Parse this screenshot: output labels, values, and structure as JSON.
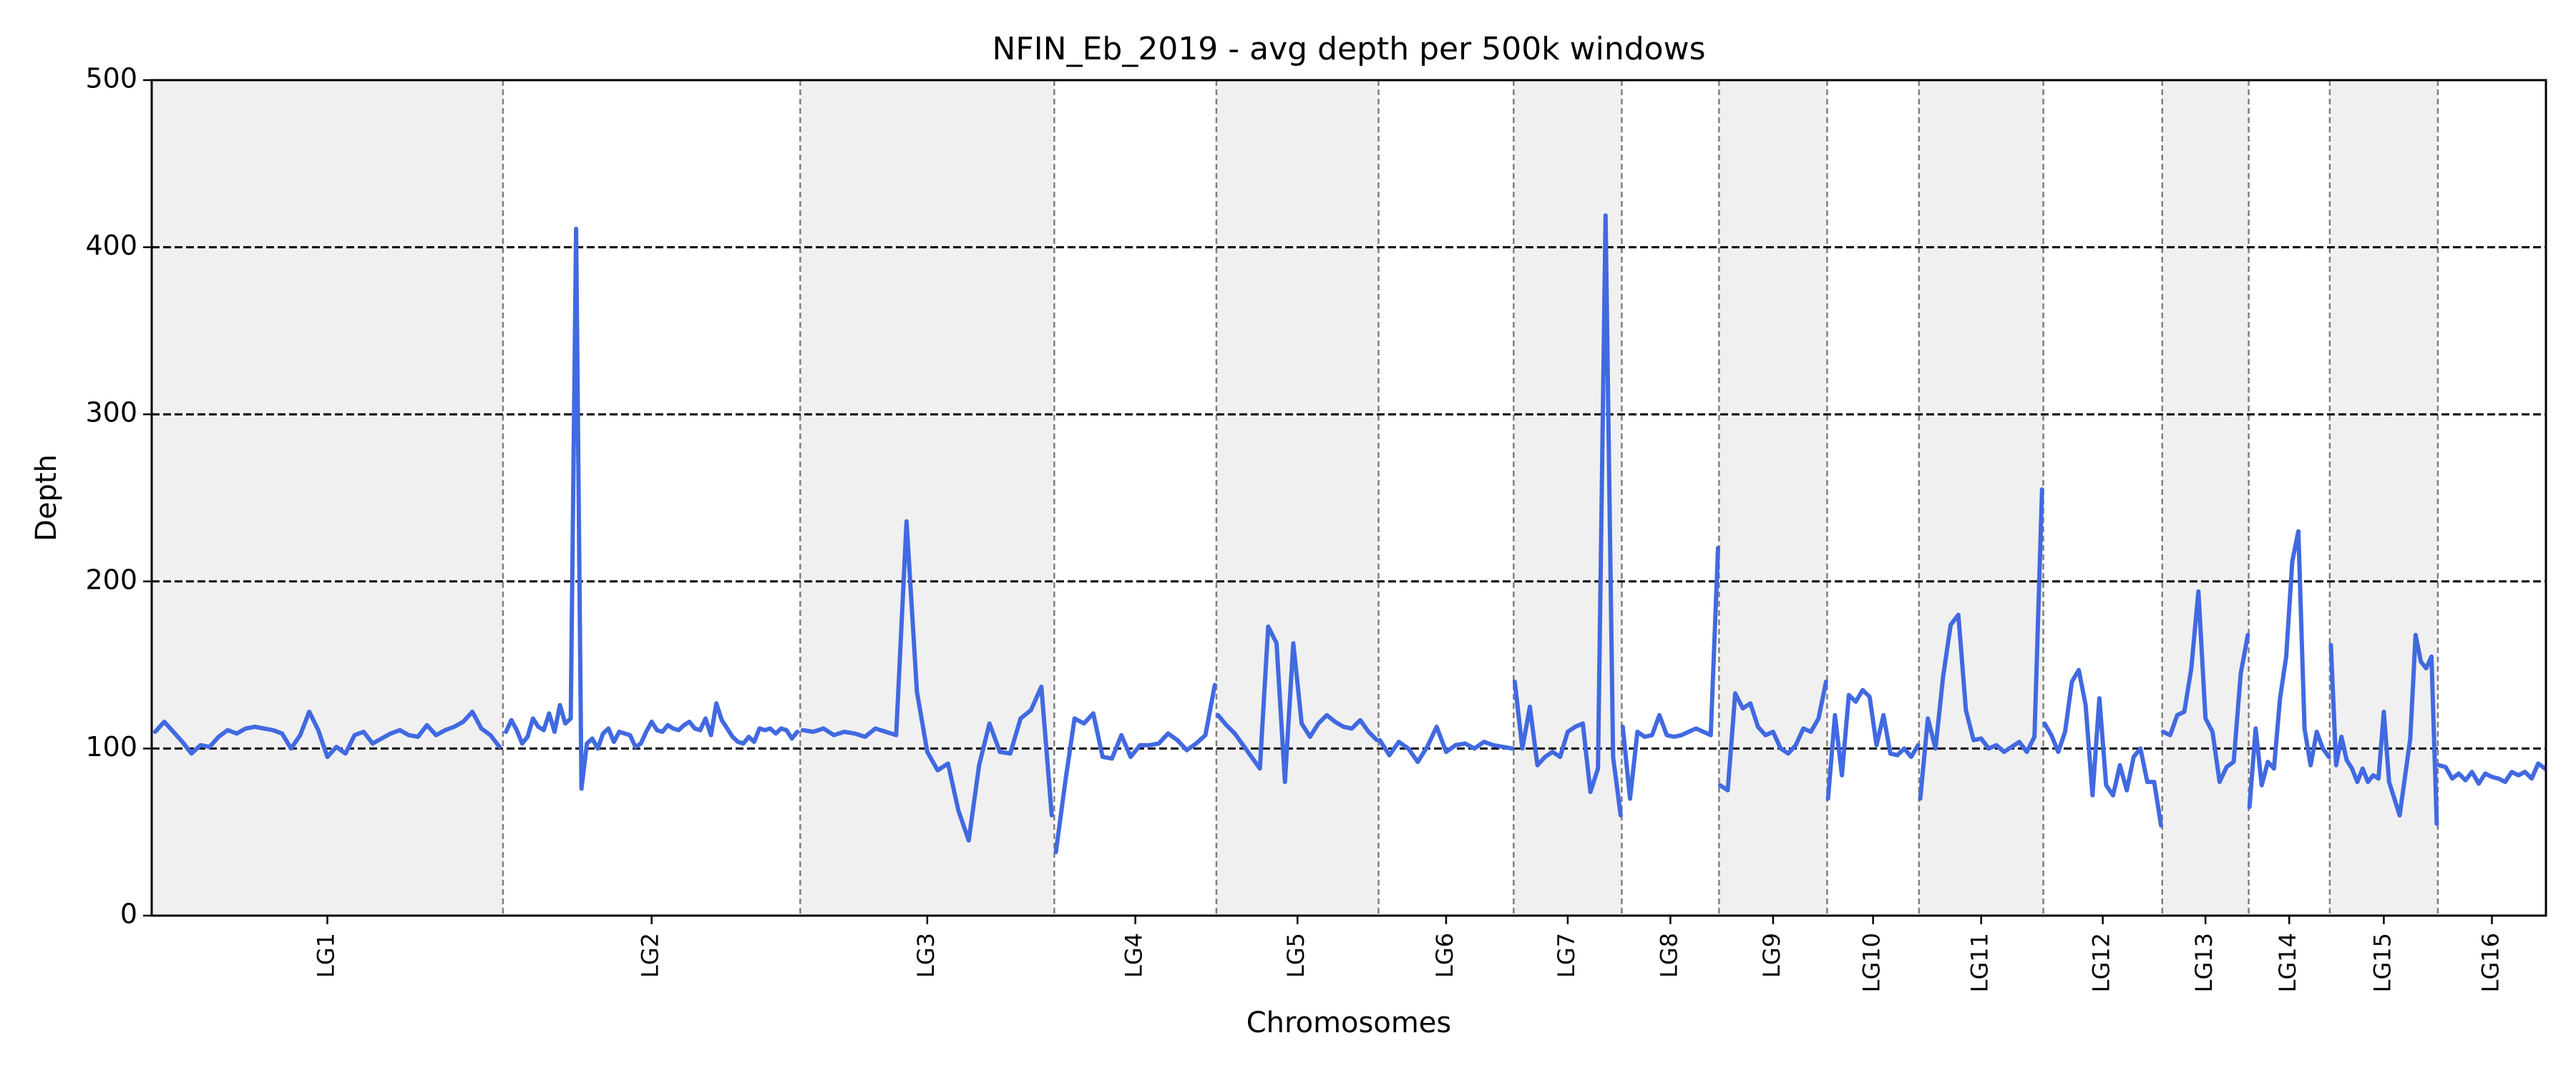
{
  "chart_data": {
    "type": "line",
    "title": "NFIN_Eb_2019 - avg depth per 500k windows",
    "xlabel": "Chromosomes",
    "ylabel": "Depth",
    "ylim": [
      0,
      500
    ],
    "yticks": [
      0,
      100,
      200,
      300,
      400,
      500
    ],
    "reference_lines": [
      100,
      200,
      300,
      400
    ],
    "grid": false,
    "legend": "none",
    "colors": {
      "line": "#4169E1",
      "shade": "#f0f0f0",
      "boundary": "#808080",
      "reference": "#000000"
    },
    "chromosomes": [
      {
        "name": "LG1",
        "width": 65,
        "shaded": true,
        "depth": [
          110,
          116,
          110,
          104,
          97,
          102,
          101,
          107,
          111,
          109,
          112,
          113,
          112,
          111,
          109,
          100,
          108,
          122,
          111,
          95,
          101,
          97,
          108,
          110,
          103,
          106,
          109,
          111,
          108,
          107,
          114,
          108,
          111,
          113,
          116,
          122,
          112,
          108,
          101
        ]
      },
      {
        "name": "LG2",
        "width": 55,
        "shaded": false,
        "depth": [
          110,
          117,
          111,
          103,
          107,
          118,
          113,
          111,
          121,
          110,
          126,
          115,
          118,
          411,
          76,
          103,
          106,
          100,
          109,
          112,
          104,
          110,
          109,
          108,
          101,
          103,
          110,
          116,
          111,
          110,
          114,
          112,
          111,
          114,
          116,
          112,
          111,
          118,
          108,
          127,
          117,
          112,
          107,
          104,
          103,
          107,
          104,
          112,
          111,
          112,
          109,
          112,
          111,
          106,
          110
        ]
      },
      {
        "name": "LG3",
        "width": 47,
        "shaded": true,
        "depth": [
          111,
          110,
          112,
          108,
          110,
          109,
          107,
          112,
          110,
          108,
          236,
          134,
          98,
          87,
          91,
          63,
          45,
          90,
          115,
          98,
          97,
          118,
          123,
          137,
          60
        ]
      },
      {
        "name": "LG4",
        "width": 30,
        "shaded": false,
        "depth": [
          38,
          80,
          118,
          115,
          121,
          95,
          94,
          108,
          95,
          102,
          102,
          103,
          109,
          105,
          99,
          103,
          108,
          138
        ]
      },
      {
        "name": "LG5",
        "width": 30,
        "shaded": true,
        "depth": [
          120,
          114,
          109,
          102,
          95,
          88,
          173,
          163,
          80,
          163,
          115,
          107,
          115,
          120,
          116,
          113,
          112,
          117,
          110,
          105
        ]
      },
      {
        "name": "LG6",
        "width": 25,
        "shaded": false,
        "depth": [
          105,
          96,
          104,
          100,
          92,
          101,
          113,
          98,
          102,
          103,
          100,
          104,
          102,
          101,
          100
        ]
      },
      {
        "name": "LG7",
        "width": 20,
        "shaded": true,
        "depth": [
          140,
          100,
          125,
          90,
          95,
          98,
          95,
          110,
          113,
          115,
          74,
          88,
          419,
          95,
          60
        ]
      },
      {
        "name": "LG8",
        "width": 18,
        "shaded": false,
        "depth": [
          113,
          70,
          110,
          107,
          108,
          120,
          108,
          107,
          108,
          110,
          112,
          110,
          108,
          220
        ]
      },
      {
        "name": "LG9",
        "width": 20,
        "shaded": true,
        "depth": [
          78,
          75,
          133,
          124,
          127,
          113,
          108,
          110,
          100,
          97,
          102,
          112,
          110,
          118,
          140
        ]
      },
      {
        "name": "LG10",
        "width": 17,
        "shaded": false,
        "depth": [
          70,
          120,
          84,
          132,
          128,
          135,
          131,
          102,
          120,
          97,
          96,
          100,
          95,
          102
        ]
      },
      {
        "name": "LG11",
        "width": 23,
        "shaded": true,
        "depth": [
          70,
          118,
          100,
          143,
          174,
          180,
          123,
          105,
          106,
          100,
          102,
          98,
          101,
          104,
          98,
          107,
          255
        ]
      },
      {
        "name": "LG12",
        "width": 22,
        "shaded": false,
        "depth": [
          115,
          108,
          98,
          110,
          140,
          147,
          126,
          72,
          130,
          78,
          72,
          90,
          75,
          95,
          100,
          80,
          80,
          54
        ]
      },
      {
        "name": "LG13",
        "width": 16,
        "shaded": true,
        "depth": [
          110,
          108,
          120,
          122,
          148,
          194,
          118,
          110,
          80,
          89,
          92,
          145,
          168
        ]
      },
      {
        "name": "LG14",
        "width": 15,
        "shaded": false,
        "depth": [
          65,
          112,
          78,
          92,
          88,
          130,
          155,
          212,
          230,
          112,
          90,
          110,
          100,
          95
        ]
      },
      {
        "name": "LG15",
        "width": 20,
        "shaded": true,
        "depth": [
          162,
          90,
          107,
          93,
          88,
          80,
          88,
          80,
          84,
          82,
          122,
          80,
          70,
          60,
          83,
          106,
          168,
          152,
          148,
          155,
          55
        ]
      },
      {
        "name": "LG16",
        "width": 20,
        "shaded": false,
        "depth": [
          90,
          89,
          82,
          85,
          81,
          86,
          79,
          85,
          83,
          82,
          80,
          86,
          84,
          86,
          82,
          91,
          88
        ]
      }
    ]
  }
}
